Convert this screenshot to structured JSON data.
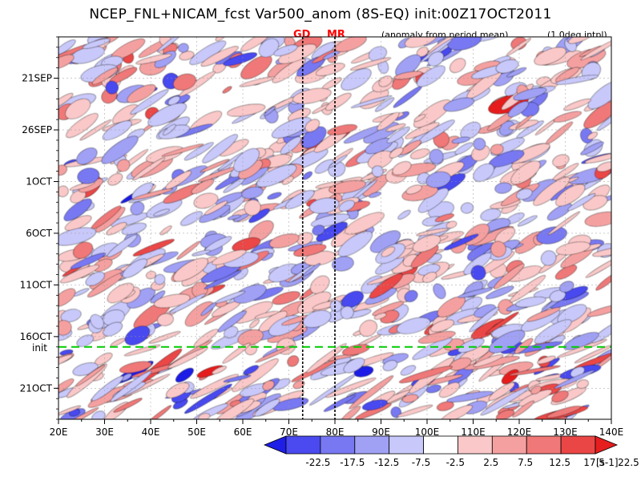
{
  "title": "NCEP_FNL+NICAM_fcst Var500_anom (8S-EQ) init:00Z17OCT2011",
  "subtitle": "(anomaly from period mean)",
  "note": "(1.0deg intpl)",
  "markers": [
    {
      "label": "GD",
      "lon": 73,
      "color": "#ff0000"
    },
    {
      "label": "MR",
      "lon": 80,
      "color": "#ff0000"
    }
  ],
  "init_label": "init",
  "init_color": "#00cc00",
  "chart_data": {
    "type": "heatmap",
    "title": "NCEP_FNL+NICAM_fcst Var500_anom (8S-EQ) init:00Z17OCT2011",
    "x_axis": {
      "range": [
        20,
        140
      ],
      "ticks": [
        {
          "value": 20,
          "label": "20E"
        },
        {
          "value": 30,
          "label": "30E"
        },
        {
          "value": 40,
          "label": "40E"
        },
        {
          "value": 50,
          "label": "50E"
        },
        {
          "value": 60,
          "label": "60E"
        },
        {
          "value": 70,
          "label": "70E"
        },
        {
          "value": 80,
          "label": "80E"
        },
        {
          "value": 90,
          "label": "90E"
        },
        {
          "value": 100,
          "label": "100E"
        },
        {
          "value": 110,
          "label": "110E"
        },
        {
          "value": 120,
          "label": "120E"
        },
        {
          "value": 130,
          "label": "130E"
        },
        {
          "value": 140,
          "label": "140E"
        }
      ]
    },
    "y_axis": {
      "range": [
        "2011-09-17",
        "2011-10-24"
      ],
      "ticks": [
        {
          "value": "2011-09-21",
          "label": "21SEP"
        },
        {
          "value": "2011-09-26",
          "label": "26SEP"
        },
        {
          "value": "2011-10-01",
          "label": "1OCT"
        },
        {
          "value": "2011-10-06",
          "label": "6OCT"
        },
        {
          "value": "2011-10-11",
          "label": "11OCT"
        },
        {
          "value": "2011-10-16",
          "label": "16OCT"
        },
        {
          "value": "2011-10-21",
          "label": "21OCT"
        }
      ]
    },
    "init_time": "2011-10-17",
    "reference_lines_lon": [
      73,
      80
    ],
    "colorbar": {
      "levels": [
        -22.5,
        -17.5,
        -12.5,
        -7.5,
        -2.5,
        2.5,
        7.5,
        12.5,
        17.5,
        22.5
      ],
      "labels": [
        "-22.5",
        "-17.5",
        "-12.5",
        "-7.5",
        "-2.5",
        "2.5",
        "7.5",
        "12.5",
        "17.5",
        "22.5"
      ],
      "colors": [
        "#1e1ee6",
        "#4a4af0",
        "#7878f2",
        "#a0a0f5",
        "#c8c8fa",
        "#ffffff",
        "#fac8c8",
        "#f5a0a0",
        "#f07878",
        "#eb4646",
        "#e61e1e"
      ],
      "unit": "[s-1]"
    }
  }
}
